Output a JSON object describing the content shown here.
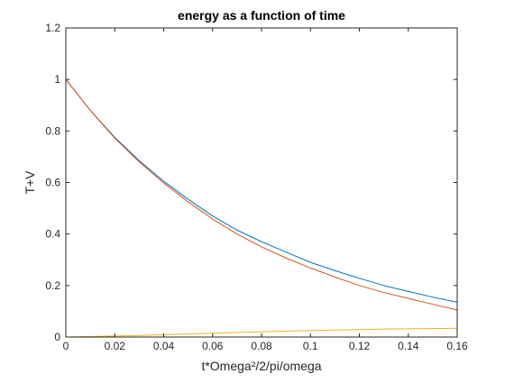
{
  "chart_data": {
    "type": "line",
    "title": "energy as a function of time",
    "xlabel": "t*Omega²/2/pi/omega",
    "ylabel": "T+V",
    "xlim": [
      0,
      0.16
    ],
    "ylim": [
      0,
      1.2
    ],
    "x_ticks": [
      0,
      0.02,
      0.04,
      0.06,
      0.08,
      0.1,
      0.12,
      0.14,
      0.16
    ],
    "x_tick_labels": [
      "0",
      "0.02",
      "0.04",
      "0.06",
      "0.08",
      "0.1",
      "0.12",
      "0.14",
      "0.16"
    ],
    "y_ticks": [
      0,
      0.2,
      0.4,
      0.6,
      0.8,
      1,
      1.2
    ],
    "y_tick_labels": [
      "0",
      "0.2",
      "0.4",
      "0.6",
      "0.8",
      "1",
      "1.2"
    ],
    "grid": false,
    "box": true,
    "series": [
      {
        "color": "#0072bd",
        "x": [
          0,
          0.01,
          0.02,
          0.03,
          0.04,
          0.05,
          0.06,
          0.07,
          0.08,
          0.09,
          0.1,
          0.11,
          0.12,
          0.13,
          0.14,
          0.15,
          0.16
        ],
        "y": [
          1.0,
          0.88,
          0.775,
          0.685,
          0.605,
          0.535,
          0.47,
          0.415,
          0.37,
          0.33,
          0.29,
          0.258,
          0.228,
          0.2,
          0.177,
          0.155,
          0.135
        ]
      },
      {
        "color": "#d95319",
        "x": [
          0,
          0.01,
          0.02,
          0.03,
          0.04,
          0.05,
          0.06,
          0.07,
          0.08,
          0.09,
          0.1,
          0.11,
          0.12,
          0.13,
          0.14,
          0.15,
          0.16
        ],
        "y": [
          1.0,
          0.88,
          0.772,
          0.68,
          0.598,
          0.525,
          0.458,
          0.4,
          0.35,
          0.307,
          0.268,
          0.233,
          0.2,
          0.173,
          0.15,
          0.127,
          0.105
        ]
      },
      {
        "color": "#edb120",
        "x": [
          0,
          0.01,
          0.02,
          0.03,
          0.04,
          0.05,
          0.06,
          0.07,
          0.08,
          0.09,
          0.1,
          0.11,
          0.12,
          0.13,
          0.14,
          0.15,
          0.16
        ],
        "y": [
          0,
          0.002,
          0.004,
          0.006,
          0.009,
          0.012,
          0.015,
          0.018,
          0.02,
          0.023,
          0.025,
          0.027,
          0.029,
          0.031,
          0.032,
          0.033,
          0.034
        ]
      }
    ]
  }
}
